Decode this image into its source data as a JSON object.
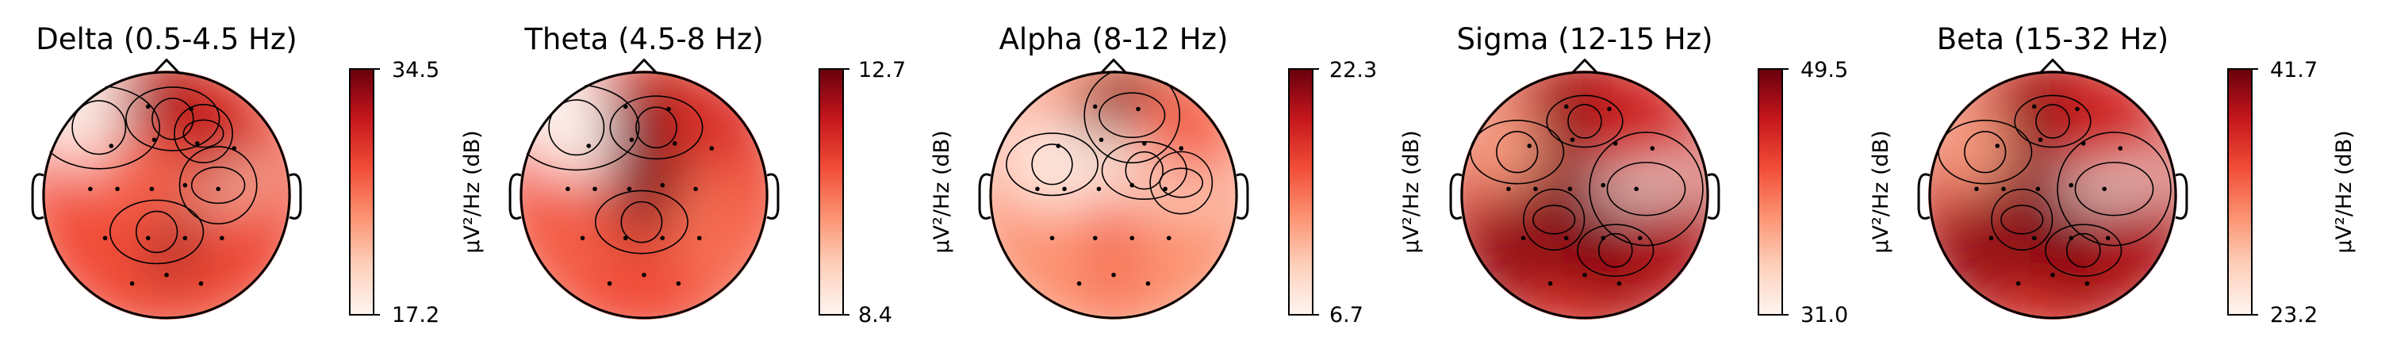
{
  "figure": {
    "colormap": [
      "#fff5f0",
      "#fdd0bb",
      "#fc9271",
      "#f14c37",
      "#c4161c",
      "#67000d"
    ],
    "outline_color": "#000000"
  },
  "chart_data": [
    {
      "type": "heatmap",
      "subtype": "eeg-topomap",
      "title": "Delta (0.5-4.5 Hz)",
      "colorbar": {
        "min": 17.2,
        "max": 34.5,
        "min_label": "17.2",
        "max_label": "34.5",
        "label": "µV²/Hz (dB)"
      },
      "hot_spots": [
        {
          "x": -0.55,
          "y": 0.55,
          "value": 0.02
        },
        {
          "x": 0.42,
          "y": 0.08,
          "value": 0.2
        },
        {
          "x": 0.05,
          "y": 0.62,
          "value": 0.95
        },
        {
          "x": 0.3,
          "y": 0.5,
          "value": 0.8
        },
        {
          "x": -0.08,
          "y": -0.3,
          "value": 0.95
        },
        {
          "x": -0.2,
          "y": 0.1,
          "value": 0.55
        },
        {
          "x": -0.5,
          "y": -0.5,
          "value": 0.6
        },
        {
          "x": 0.6,
          "y": -0.45,
          "value": 0.62
        }
      ]
    },
    {
      "type": "heatmap",
      "subtype": "eeg-topomap",
      "title": "Theta (4.5-8 Hz)",
      "colorbar": {
        "min": 8.4,
        "max": 12.7,
        "min_label": "8.4",
        "max_label": "12.7",
        "label": "µV²/Hz (dB)"
      },
      "hot_spots": [
        {
          "x": -0.55,
          "y": 0.55,
          "value": 0.0
        },
        {
          "x": 0.45,
          "y": 0.25,
          "value": 0.5
        },
        {
          "x": 0.1,
          "y": 0.55,
          "value": 0.95
        },
        {
          "x": 0.6,
          "y": 0.6,
          "value": 0.7
        },
        {
          "x": -0.02,
          "y": -0.22,
          "value": 0.95
        },
        {
          "x": -0.55,
          "y": -0.4,
          "value": 0.55
        },
        {
          "x": 0.5,
          "y": -0.45,
          "value": 0.5
        },
        {
          "x": 0.0,
          "y": -0.8,
          "value": 0.6
        }
      ]
    },
    {
      "type": "heatmap",
      "subtype": "eeg-topomap",
      "title": "Alpha (8-12 Hz)",
      "colorbar": {
        "min": 6.7,
        "max": 22.3,
        "min_label": "6.7",
        "max_label": "22.3",
        "label": "µV²/Hz (dB)"
      },
      "hot_spots": [
        {
          "x": -0.5,
          "y": 0.25,
          "value": 0.05
        },
        {
          "x": 0.15,
          "y": 0.65,
          "value": 0.95
        },
        {
          "x": 0.25,
          "y": 0.2,
          "value": 0.1
        },
        {
          "x": 0.55,
          "y": 0.1,
          "value": 0.15
        },
        {
          "x": 0.0,
          "y": -0.45,
          "value": 0.6
        },
        {
          "x": -0.5,
          "y": -0.5,
          "value": 0.4
        },
        {
          "x": 0.5,
          "y": -0.5,
          "value": 0.4
        },
        {
          "x": 0.6,
          "y": 0.55,
          "value": 0.55
        }
      ]
    },
    {
      "type": "heatmap",
      "subtype": "eeg-topomap",
      "title": "Sigma (12-15 Hz)",
      "colorbar": {
        "min": 31.0,
        "max": 49.5,
        "min_label": "31.0",
        "max_label": "49.5",
        "label": "µV²/Hz (dB)"
      },
      "hot_spots": [
        {
          "x": -0.55,
          "y": 0.35,
          "value": 0.35
        },
        {
          "x": 0.5,
          "y": 0.05,
          "value": 0.0
        },
        {
          "x": 0.0,
          "y": 0.6,
          "value": 0.95
        },
        {
          "x": -0.25,
          "y": -0.2,
          "value": 0.95
        },
        {
          "x": 0.25,
          "y": -0.45,
          "value": 0.95
        },
        {
          "x": -0.6,
          "y": -0.45,
          "value": 0.9
        },
        {
          "x": 0.7,
          "y": -0.4,
          "value": 0.85
        },
        {
          "x": 0.4,
          "y": 0.55,
          "value": 0.75
        }
      ]
    },
    {
      "type": "heatmap",
      "subtype": "eeg-topomap",
      "title": "Beta (15-32 Hz)",
      "colorbar": {
        "min": 23.2,
        "max": 41.7,
        "min_label": "23.2",
        "max_label": "41.7",
        "label": "µV²/Hz (dB)"
      },
      "hot_spots": [
        {
          "x": -0.55,
          "y": 0.35,
          "value": 0.35
        },
        {
          "x": 0.5,
          "y": 0.05,
          "value": 0.0
        },
        {
          "x": 0.0,
          "y": 0.6,
          "value": 0.95
        },
        {
          "x": -0.25,
          "y": -0.2,
          "value": 0.95
        },
        {
          "x": 0.25,
          "y": -0.45,
          "value": 0.95
        },
        {
          "x": -0.6,
          "y": -0.45,
          "value": 0.9
        },
        {
          "x": 0.7,
          "y": -0.4,
          "value": 0.85
        },
        {
          "x": 0.4,
          "y": 0.55,
          "value": 0.75
        }
      ]
    }
  ]
}
